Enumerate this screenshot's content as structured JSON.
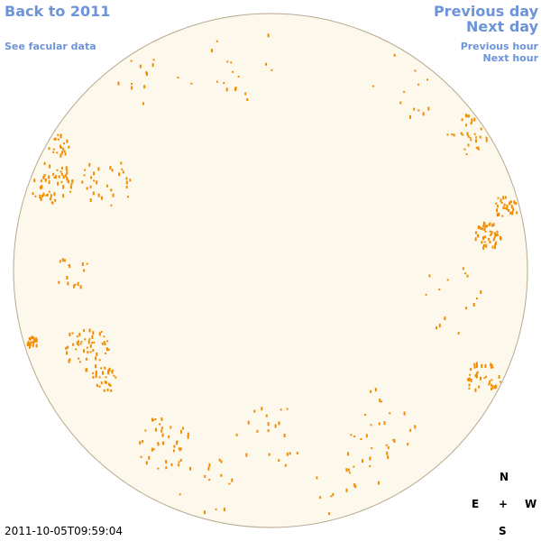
{
  "nav": {
    "back": "Back to 2011",
    "facular": "See facular data",
    "previous_day": "Previous day",
    "next_day": "Next day",
    "previous_hour": "Previous hour",
    "next_hour": "Next hour"
  },
  "compass": {
    "north": "N",
    "east": "E",
    "center": "+",
    "west": "W",
    "south": "S"
  },
  "timestamp": "2011-10-05T09:59:04"
}
